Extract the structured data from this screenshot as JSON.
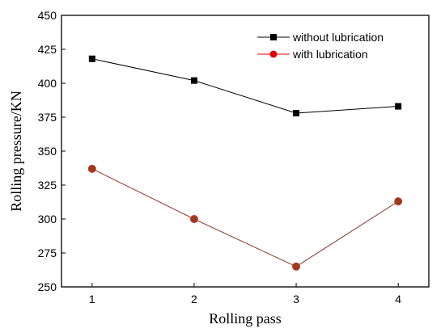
{
  "chart_data": {
    "type": "line",
    "title": "",
    "xlabel": "Rolling pass",
    "ylabel": "Rolling pressure/KN",
    "x": [
      1,
      2,
      3,
      4
    ],
    "xlim": [
      0.7,
      4.3
    ],
    "ylim": [
      250,
      450
    ],
    "xticks": [
      1,
      2,
      3,
      4
    ],
    "yticks": [
      250,
      275,
      300,
      325,
      350,
      375,
      400,
      425,
      450
    ],
    "grid": false,
    "legend_position": "top-right",
    "series": [
      {
        "name": "without lubrication",
        "values": [
          418,
          402,
          378,
          383
        ],
        "color": "#000000",
        "marker": "square"
      },
      {
        "name": "with lubrication",
        "values": [
          337,
          300,
          265,
          313
        ],
        "color": "#e00000",
        "marker": "circle"
      }
    ]
  }
}
